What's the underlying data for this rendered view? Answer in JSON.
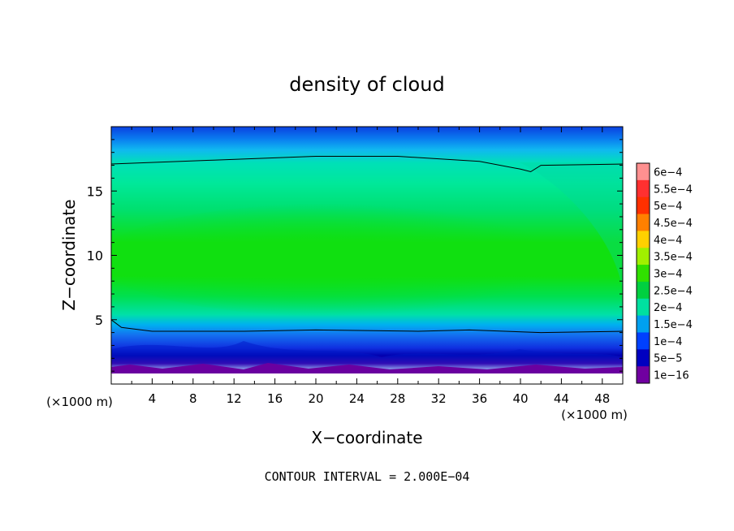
{
  "chart_data": {
    "type": "heatmap",
    "title": "density of cloud",
    "xlabel": "X−coordinate",
    "ylabel": "Z−coordinate",
    "x_unit_left": "(×1000 m)",
    "x_unit_right": "(×1000 m)",
    "footer": "CONTOUR INTERVAL = 2.000E−04",
    "xlim": [
      0,
      50
    ],
    "ylim": [
      0,
      20
    ],
    "x_ticks": [
      4,
      8,
      12,
      16,
      20,
      24,
      28,
      32,
      36,
      40,
      44,
      48
    ],
    "y_ticks": [
      5,
      10,
      15
    ],
    "colorbar": {
      "labels": [
        "6e−4",
        "5.5e−4",
        "5e−4",
        "4.5e−4",
        "4e−4",
        "3.5e−4",
        "3e−4",
        "2.5e−4",
        "2e−4",
        "1.5e−4",
        "1e−4",
        "5e−5",
        "1e−16"
      ],
      "colors": [
        "#ff9090",
        "#ff3030",
        "#ff3000",
        "#ff8000",
        "#ffd000",
        "#a0f000",
        "#30e000",
        "#00d040",
        "#00e0a0",
        "#00a0f0",
        "#0040ff",
        "#0000c0",
        "#7000a0"
      ]
    },
    "contour_lines": [
      {
        "level": "2e−4",
        "z_by_x": [
          [
            0,
            17.1
          ],
          [
            10,
            17.4
          ],
          [
            20,
            17.7
          ],
          [
            28,
            17.7
          ],
          [
            36,
            17.3
          ],
          [
            40,
            16.7
          ],
          [
            41,
            16.5
          ],
          [
            42,
            17.0
          ],
          [
            50,
            17.1
          ]
        ]
      },
      {
        "level": "2e−4",
        "z_by_x": [
          [
            0,
            5.0
          ],
          [
            1,
            4.4
          ],
          [
            4,
            4.1
          ],
          [
            13,
            4.1
          ],
          [
            20,
            4.2
          ],
          [
            30,
            4.1
          ],
          [
            35,
            4.2
          ],
          [
            42,
            4.0
          ],
          [
            50,
            4.1
          ]
        ]
      }
    ]
  }
}
